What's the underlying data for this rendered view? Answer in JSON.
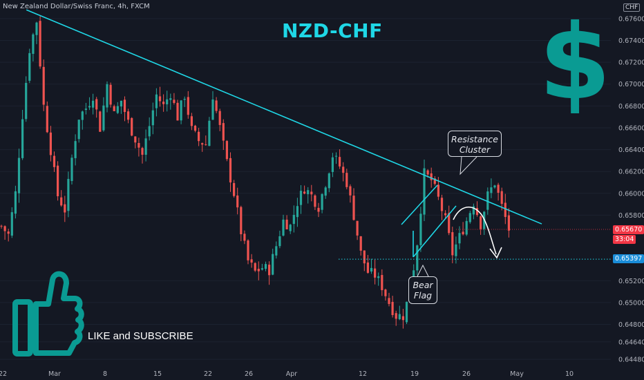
{
  "header": {
    "symbol_description": "New Zealand Dollar/Swiss Franc, 4h, FXCM",
    "currency": "CHF"
  },
  "overlay": {
    "title": "NZD-CHF",
    "dollar_sign": "$",
    "dollar_color": "#0a9b93",
    "like_text": "LIKE and SUBSCRIBE",
    "thumbs_up_icon": "thumbs-up-icon",
    "thumbs_color": "#0a9b93"
  },
  "callouts": {
    "resistance_line1": "Resistance",
    "resistance_line2": "Cluster",
    "bear_line1": "Bear",
    "bear_line2": "Flag"
  },
  "price_tags": {
    "last_price": "0.65670",
    "countdown": "33:04",
    "support_level": "0.65397"
  },
  "colors": {
    "background": "#141823",
    "up_candle": "#26a69a",
    "down_candle": "#ef5350",
    "trendline": "#1fd7e6",
    "support_line": "#1fd7e6"
  },
  "chart_data": {
    "type": "candlestick",
    "title": "NZD-CHF",
    "ylim": [
      0.6443,
      0.6777
    ],
    "y_ticks": [
      "0.67600",
      "0.67400",
      "0.67200",
      "0.67000",
      "0.66800",
      "0.66600",
      "0.66400",
      "0.66200",
      "0.66000",
      "0.65800",
      "0.65200",
      "0.65000",
      "0.64800",
      "0.64640",
      "0.64480"
    ],
    "x_ticks": [
      "22",
      "Mar",
      "8",
      "15",
      "22",
      "26",
      "Apr",
      "12",
      "19",
      "26",
      "May",
      "10"
    ],
    "close_path": [
      {
        "t": 0,
        "p": 0.657
      },
      {
        "t": 2,
        "p": 0.6562
      },
      {
        "t": 4,
        "p": 0.66
      },
      {
        "t": 6,
        "p": 0.6672
      },
      {
        "t": 8,
        "p": 0.6732
      },
      {
        "t": 10,
        "p": 0.6758
      },
      {
        "t": 12,
        "p": 0.668
      },
      {
        "t": 14,
        "p": 0.664
      },
      {
        "t": 16,
        "p": 0.6598
      },
      {
        "t": 18,
        "p": 0.6585
      },
      {
        "t": 20,
        "p": 0.6632
      },
      {
        "t": 22,
        "p": 0.667
      },
      {
        "t": 24,
        "p": 0.6678
      },
      {
        "t": 26,
        "p": 0.669
      },
      {
        "t": 28,
        "p": 0.666
      },
      {
        "t": 30,
        "p": 0.67
      },
      {
        "t": 32,
        "p": 0.6672
      },
      {
        "t": 34,
        "p": 0.6685
      },
      {
        "t": 36,
        "p": 0.6665
      },
      {
        "t": 38,
        "p": 0.665
      },
      {
        "t": 40,
        "p": 0.6635
      },
      {
        "t": 42,
        "p": 0.6662
      },
      {
        "t": 44,
        "p": 0.669
      },
      {
        "t": 46,
        "p": 0.668
      },
      {
        "t": 48,
        "p": 0.6692
      },
      {
        "t": 50,
        "p": 0.667
      },
      {
        "t": 52,
        "p": 0.669
      },
      {
        "t": 54,
        "p": 0.6658
      },
      {
        "t": 56,
        "p": 0.6648
      },
      {
        "t": 58,
        "p": 0.6645
      },
      {
        "t": 60,
        "p": 0.669
      },
      {
        "t": 62,
        "p": 0.666
      },
      {
        "t": 64,
        "p": 0.6628
      },
      {
        "t": 66,
        "p": 0.66
      },
      {
        "t": 68,
        "p": 0.6565
      },
      {
        "t": 70,
        "p": 0.6538
      },
      {
        "t": 72,
        "p": 0.6528
      },
      {
        "t": 74,
        "p": 0.6532
      },
      {
        "t": 76,
        "p": 0.653
      },
      {
        "t": 78,
        "p": 0.6552
      },
      {
        "t": 80,
        "p": 0.6575
      },
      {
        "t": 82,
        "p": 0.657
      },
      {
        "t": 84,
        "p": 0.6592
      },
      {
        "t": 86,
        "p": 0.6605
      },
      {
        "t": 88,
        "p": 0.6598
      },
      {
        "t": 90,
        "p": 0.6588
      },
      {
        "t": 92,
        "p": 0.661
      },
      {
        "t": 94,
        "p": 0.6635
      },
      {
        "t": 96,
        "p": 0.6625
      },
      {
        "t": 98,
        "p": 0.661
      },
      {
        "t": 100,
        "p": 0.658
      },
      {
        "t": 102,
        "p": 0.6545
      },
      {
        "t": 104,
        "p": 0.6528
      },
      {
        "t": 106,
        "p": 0.6525
      },
      {
        "t": 108,
        "p": 0.6515
      },
      {
        "t": 110,
        "p": 0.65
      },
      {
        "t": 112,
        "p": 0.6488
      },
      {
        "t": 114,
        "p": 0.6488
      },
      {
        "t": 116,
        "p": 0.651
      },
      {
        "t": 118,
        "p": 0.6555
      },
      {
        "t": 120,
        "p": 0.6618
      },
      {
        "t": 122,
        "p": 0.6612
      },
      {
        "t": 124,
        "p": 0.6595
      },
      {
        "t": 126,
        "p": 0.6575
      },
      {
        "t": 128,
        "p": 0.6545
      },
      {
        "t": 130,
        "p": 0.656
      },
      {
        "t": 132,
        "p": 0.6575
      },
      {
        "t": 134,
        "p": 0.6592
      },
      {
        "t": 136,
        "p": 0.6572
      },
      {
        "t": 138,
        "p": 0.6598
      },
      {
        "t": 140,
        "p": 0.661
      },
      {
        "t": 142,
        "p": 0.6588
      },
      {
        "t": 144,
        "p": 0.6567
      }
    ],
    "candle_count": 145,
    "trendline": {
      "start": {
        "t": 2,
        "p": 0.6768
      },
      "end": {
        "t": 170,
        "p": 0.6572
      }
    },
    "support_level": 0.65397,
    "last_price": 0.6567
  }
}
